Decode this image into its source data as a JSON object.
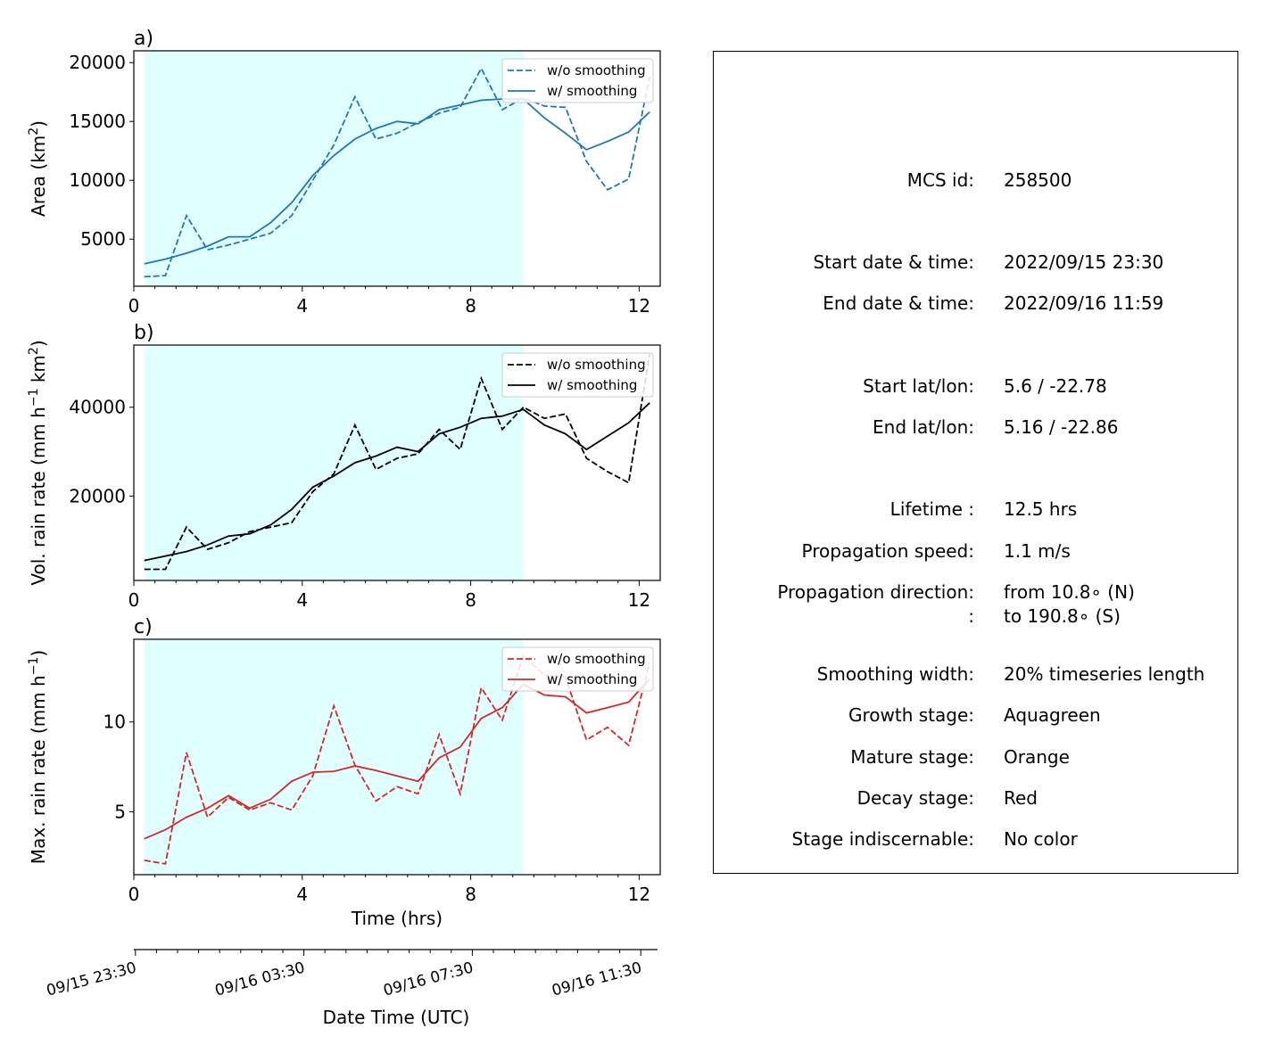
{
  "panels": [
    {
      "label": "a)",
      "ylabel_main": "Area  (km",
      "ylabel_sup": "2",
      "ylabel_end": ")",
      "yticks": [
        5000,
        10000,
        15000,
        20000
      ],
      "ylim": [
        1000,
        21000
      ],
      "color": "#1f77b4"
    },
    {
      "label": "b)",
      "ylabel_main": "Vol. rain rate (mm h",
      "ylabel_sup": "−1",
      "ylabel_mid": " km",
      "ylabel_sup2": "2",
      "ylabel_end": ")",
      "yticks": [
        20000,
        40000
      ],
      "ylim": [
        1000,
        54000
      ],
      "color": "#000000"
    },
    {
      "label": "c)",
      "ylabel_main": "Max. rain rate  (mm h",
      "ylabel_sup": "−1",
      "ylabel_end": ")",
      "yticks": [
        5,
        10
      ],
      "ylim": [
        1.5,
        14.6
      ],
      "color": "#d62728"
    }
  ],
  "legend": {
    "dashed": "w/o smoothing",
    "solid": "w/ smoothing"
  },
  "xaxis": {
    "label": "Time (hrs)",
    "ticks": [
      0,
      4,
      8,
      12
    ],
    "xlim": [
      0,
      12.5
    ]
  },
  "date_axis": {
    "label": "Date Time (UTC)",
    "tick_labels": [
      "09/15 23:30",
      "09/16 03:30",
      "09/16 07:30",
      "09/16 11:30"
    ]
  },
  "shading": {
    "color": "#e0ffff",
    "x_start": 0.25,
    "x_end": 9.25,
    "stage": "growth"
  },
  "info": {
    "mcs_id": {
      "key": "MCS id:",
      "value": "258500"
    },
    "start_dt": {
      "key": "Start date & time:",
      "value": "2022/09/15 23:30"
    },
    "end_dt": {
      "key": "End date & time:",
      "value": "2022/09/16 11:59"
    },
    "start_ll": {
      "key": "Start lat/lon:",
      "value": "5.6 / -22.78"
    },
    "end_ll": {
      "key": "End lat/lon:",
      "value": "5.16 / -22.86"
    },
    "lifetime": {
      "key": "Lifetime :",
      "value": "12.5 hrs"
    },
    "speed": {
      "key": "Propagation speed:",
      "value": "1.1 m/s"
    },
    "direction": {
      "key": "Propagation direction:",
      "value": "from  10.8∘ (N)"
    },
    "direction2": {
      "key": ":",
      "value": "to   190.8∘ (S)"
    },
    "smoothing": {
      "key": "Smoothing width:",
      "value": "20% timeseries length"
    },
    "growth": {
      "key": "Growth stage:",
      "value": "Aquagreen"
    },
    "mature": {
      "key": "Mature stage:",
      "value": "Orange"
    },
    "decay": {
      "key": "Decay stage:",
      "value": "Red"
    },
    "indiscernable": {
      "key": "Stage indiscernable:",
      "value": "No color"
    }
  },
  "chart_data": [
    {
      "type": "line",
      "ylabel": "Area  (km2)",
      "xlabel": "",
      "ylim": [
        1000,
        21000
      ],
      "x": [
        0.25,
        0.75,
        1.25,
        1.75,
        2.25,
        2.75,
        3.25,
        3.75,
        4.25,
        4.75,
        5.25,
        5.75,
        6.25,
        6.75,
        7.25,
        7.75,
        8.25,
        8.75,
        9.25,
        9.75,
        10.25,
        10.75,
        11.25,
        11.75,
        12.25
      ],
      "series": [
        {
          "name": "w/o smoothing",
          "style": "dashed",
          "values": [
            1800,
            1900,
            7000,
            4100,
            4500,
            5000,
            5500,
            7000,
            10000,
            13000,
            17100,
            13500,
            14000,
            14900,
            15700,
            16200,
            19500,
            16000,
            17000,
            16300,
            16200,
            11600,
            9200,
            10100,
            18800
          ]
        },
        {
          "name": "w/ smoothing",
          "style": "solid",
          "values": [
            2900,
            3300,
            3800,
            4400,
            5200,
            5200,
            6400,
            8100,
            10400,
            12100,
            13500,
            14400,
            15000,
            14800,
            16000,
            16400,
            16800,
            16900,
            16900,
            15300,
            14000,
            12600,
            13300,
            14100,
            15800
          ]
        }
      ]
    },
    {
      "type": "line",
      "ylabel": "Vol. rain rate (mm h−1 km2)",
      "xlabel": "",
      "ylim": [
        1000,
        54000
      ],
      "x": [
        0.25,
        0.75,
        1.25,
        1.75,
        2.25,
        2.75,
        3.25,
        3.75,
        4.25,
        4.75,
        5.25,
        5.75,
        6.25,
        6.75,
        7.25,
        7.75,
        8.25,
        8.75,
        9.25,
        9.75,
        10.25,
        10.75,
        11.25,
        11.75,
        12.25
      ],
      "series": [
        {
          "name": "w/o smoothing",
          "style": "dashed",
          "values": [
            3500,
            3500,
            13000,
            8000,
            9500,
            12000,
            13000,
            14000,
            21000,
            25000,
            36000,
            26000,
            28500,
            29500,
            35000,
            30500,
            46500,
            35000,
            40000,
            37500,
            38500,
            28500,
            25500,
            23000,
            52000
          ]
        },
        {
          "name": "w/ smoothing",
          "style": "solid",
          "values": [
            5500,
            6500,
            7500,
            9000,
            11000,
            11500,
            13500,
            17000,
            22000,
            24500,
            27500,
            29000,
            31000,
            30000,
            34000,
            35500,
            37500,
            38000,
            39500,
            36000,
            34000,
            30500,
            33500,
            36500,
            41000
          ]
        }
      ]
    },
    {
      "type": "line",
      "ylabel": "Max. rain rate  (mm h−1)",
      "xlabel": "Time (hrs)",
      "ylim": [
        1.5,
        14.6
      ],
      "x": [
        0.25,
        0.75,
        1.25,
        1.75,
        2.25,
        2.75,
        3.25,
        3.75,
        4.25,
        4.75,
        5.25,
        5.75,
        6.25,
        6.75,
        7.25,
        7.75,
        8.25,
        8.75,
        9.25,
        9.75,
        10.25,
        10.75,
        11.25,
        11.75,
        12.25
      ],
      "series": [
        {
          "name": "w/o smoothing",
          "style": "dashed",
          "values": [
            2.3,
            2.1,
            8.3,
            4.7,
            5.8,
            5.1,
            5.5,
            5.1,
            7.0,
            10.9,
            7.6,
            5.6,
            6.4,
            6.0,
            9.3,
            6.0,
            11.9,
            10.1,
            13.7,
            12.6,
            12.5,
            9.0,
            9.7,
            8.7,
            13.3
          ]
        },
        {
          "name": "w/ smoothing",
          "style": "solid",
          "values": [
            3.5,
            4.0,
            4.7,
            5.2,
            5.9,
            5.2,
            5.7,
            6.7,
            7.2,
            7.25,
            7.55,
            7.3,
            7.0,
            6.7,
            8.0,
            8.6,
            10.2,
            10.8,
            12.1,
            11.5,
            11.4,
            10.5,
            10.8,
            11.1,
            12.4
          ]
        }
      ]
    }
  ]
}
